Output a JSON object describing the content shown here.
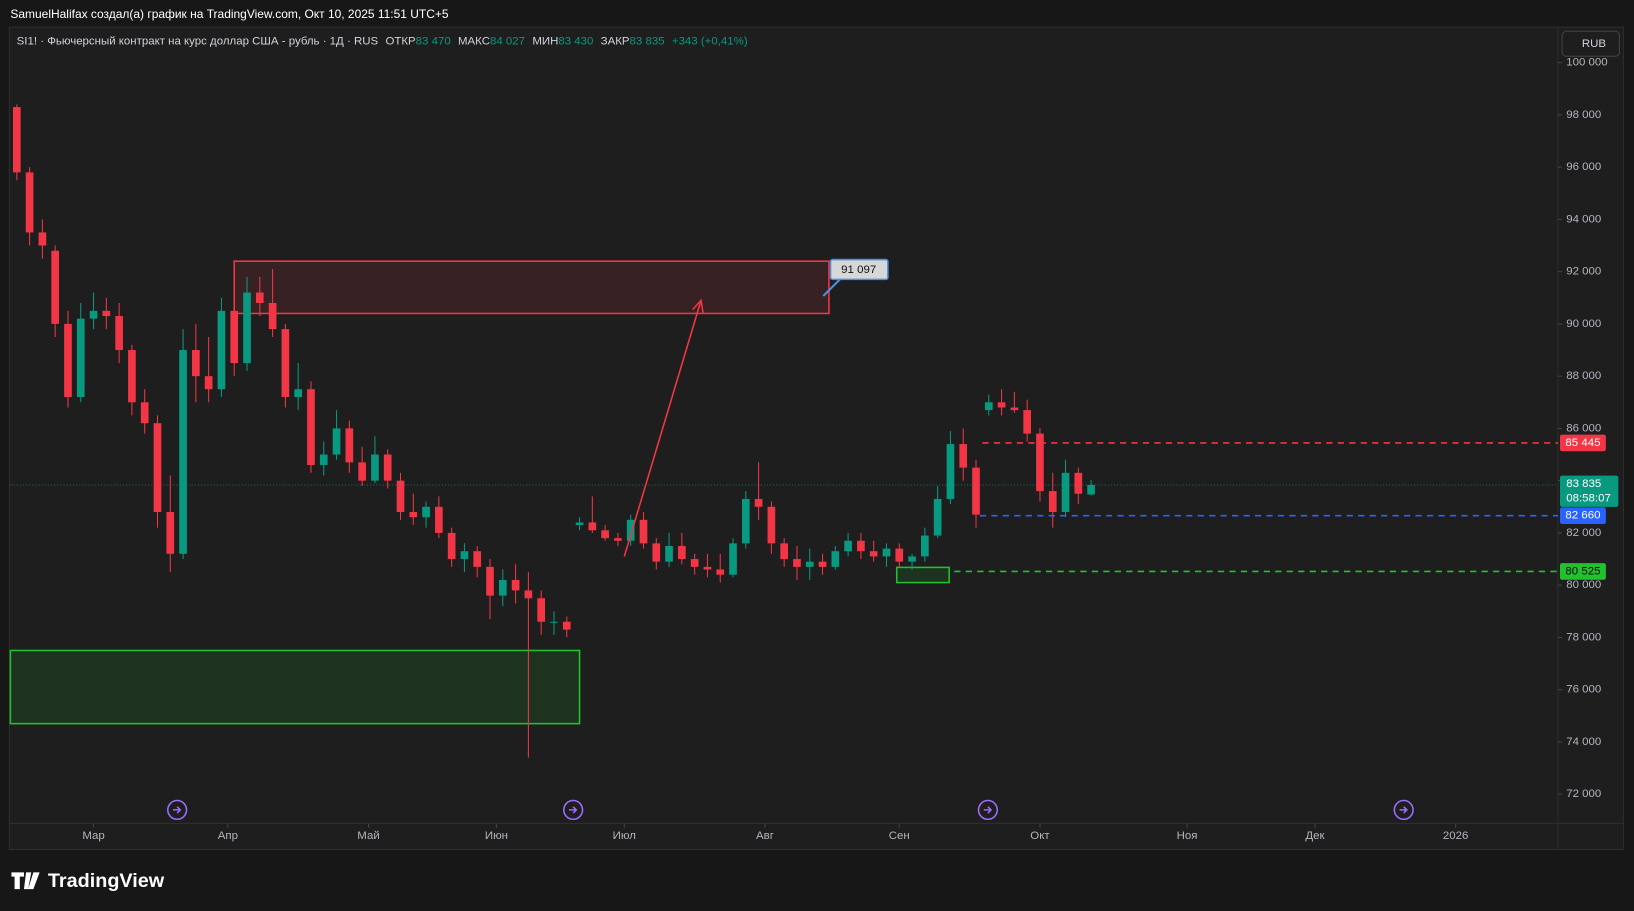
{
  "header": {
    "text": "SamuelHalifax создал(а) график на TradingView.com, Окт 10, 2025 11:51 UTC+5"
  },
  "legend": {
    "symbol": "SI1! · Фьючерсный контракт на курс доллар США - рубль · 1Д · RUS",
    "fields": [
      {
        "label": "ОТКР",
        "value": "83 470"
      },
      {
        "label": "МАКС",
        "value": "84 027"
      },
      {
        "label": "МИН",
        "value": "83 430"
      },
      {
        "label": "ЗАКР",
        "value": "83 835"
      }
    ],
    "change": "+343 (+0,41%)"
  },
  "currency": "RUB",
  "brand": "TradingView",
  "chart_data": {
    "type": "candlestick",
    "up_color": "#089981",
    "down_color": "#f23645",
    "values": [
      [
        98300,
        98400,
        95500,
        95800
      ],
      [
        95800,
        96000,
        93000,
        93500
      ],
      [
        93500,
        94000,
        92500,
        93000
      ],
      [
        92800,
        93000,
        89500,
        90000
      ],
      [
        90000,
        90500,
        86800,
        87200
      ],
      [
        87200,
        90800,
        87000,
        90200
      ],
      [
        90200,
        91200,
        89800,
        90500
      ],
      [
        90500,
        91000,
        89800,
        90300
      ],
      [
        90300,
        90800,
        88500,
        89000
      ],
      [
        89000,
        89200,
        86500,
        87000
      ],
      [
        87000,
        87500,
        85800,
        86200
      ],
      [
        86200,
        86500,
        82200,
        82800
      ],
      [
        82800,
        84200,
        80500,
        81200
      ],
      [
        81200,
        89800,
        81000,
        89000
      ],
      [
        89000,
        90000,
        87000,
        88000
      ],
      [
        88000,
        89500,
        87000,
        87500
      ],
      [
        87500,
        91000,
        87200,
        90500
      ],
      [
        90500,
        91000,
        88000,
        88500
      ],
      [
        88500,
        91800,
        88200,
        91200
      ],
      [
        91200,
        91800,
        90300,
        90800
      ],
      [
        90800,
        92100,
        89500,
        89800
      ],
      [
        89800,
        90000,
        86800,
        87200
      ],
      [
        87200,
        88500,
        86700,
        87500
      ],
      [
        87500,
        87800,
        84300,
        84600
      ],
      [
        84600,
        85500,
        84200,
        85000
      ],
      [
        85000,
        86700,
        84800,
        86000
      ],
      [
        86000,
        86300,
        84300,
        84700
      ],
      [
        84700,
        85300,
        83800,
        84000
      ],
      [
        84000,
        85700,
        83900,
        85000
      ],
      [
        85000,
        85200,
        83700,
        84000
      ],
      [
        84000,
        84300,
        82500,
        82800
      ],
      [
        82800,
        83500,
        82300,
        82600
      ],
      [
        82600,
        83200,
        82200,
        83000
      ],
      [
        83000,
        83400,
        81800,
        82000
      ],
      [
        82000,
        82200,
        80700,
        81000
      ],
      [
        81000,
        81600,
        80500,
        81300
      ],
      [
        81300,
        81500,
        80300,
        80700
      ],
      [
        80700,
        81000,
        78700,
        79600
      ],
      [
        79600,
        80600,
        79200,
        80200
      ],
      [
        80200,
        80800,
        79300,
        79800
      ],
      [
        79800,
        80500,
        73400,
        79500
      ],
      [
        79500,
        79800,
        78100,
        78600
      ],
      [
        78600,
        79000,
        78100,
        78600
      ],
      [
        78600,
        78800,
        78000,
        78300
      ],
      [
        82300,
        82600,
        82100,
        82400
      ],
      [
        82400,
        83400,
        82000,
        82100
      ],
      [
        82100,
        82300,
        81700,
        81800
      ],
      [
        81800,
        82000,
        81500,
        81700
      ],
      [
        81700,
        82700,
        81500,
        82500
      ],
      [
        82500,
        82800,
        81400,
        81600
      ],
      [
        81600,
        81800,
        80600,
        80900
      ],
      [
        80900,
        82000,
        80700,
        81500
      ],
      [
        81500,
        82000,
        80800,
        81000
      ],
      [
        81000,
        81200,
        80400,
        80700
      ],
      [
        80700,
        81200,
        80300,
        80600
      ],
      [
        80600,
        81200,
        80100,
        80400
      ],
      [
        80400,
        81800,
        80300,
        81600
      ],
      [
        81600,
        83600,
        81400,
        83300
      ],
      [
        83300,
        84700,
        82500,
        83000
      ],
      [
        83000,
        83200,
        81200,
        81600
      ],
      [
        81600,
        81800,
        80700,
        81000
      ],
      [
        81000,
        81500,
        80200,
        80700
      ],
      [
        80700,
        81400,
        80200,
        80900
      ],
      [
        80900,
        81200,
        80400,
        80700
      ],
      [
        80700,
        81500,
        80600,
        81300
      ],
      [
        81300,
        82000,
        81100,
        81700
      ],
      [
        81700,
        82000,
        81000,
        81300
      ],
      [
        81300,
        81700,
        80900,
        81100
      ],
      [
        81100,
        81600,
        80700,
        81400
      ],
      [
        81400,
        81600,
        80700,
        80900
      ],
      [
        80900,
        81200,
        80600,
        81100
      ],
      [
        81100,
        82200,
        80900,
        81900
      ],
      [
        81900,
        83800,
        81800,
        83300
      ],
      [
        83300,
        85900,
        83100,
        85400
      ],
      [
        85400,
        86000,
        84000,
        84500
      ],
      [
        84500,
        84800,
        82200,
        82700
      ],
      [
        86700,
        87300,
        86500,
        87000
      ],
      [
        87000,
        87500,
        86500,
        86800
      ],
      [
        86800,
        87400,
        86600,
        86700
      ],
      [
        86700,
        87100,
        85500,
        85800
      ],
      [
        85800,
        86000,
        83200,
        83600
      ],
      [
        83600,
        84300,
        82200,
        82800
      ],
      [
        82800,
        84800,
        82600,
        84300
      ],
      [
        84300,
        84500,
        83100,
        83500
      ],
      [
        83470,
        84027,
        83430,
        83835
      ]
    ],
    "xlim": [
      -0.5,
      120.5
    ],
    "xticks": [
      {
        "value": 6,
        "label": "Мар"
      },
      {
        "value": 16.5,
        "label": "Апр"
      },
      {
        "value": 27.5,
        "label": "Май"
      },
      {
        "value": 37.5,
        "label": "Июн"
      },
      {
        "value": 47.5,
        "label": "Июл"
      },
      {
        "value": 58.5,
        "label": "Авг"
      },
      {
        "value": 69,
        "label": "Сен"
      },
      {
        "value": 80,
        "label": "Окт"
      },
      {
        "value": 91.5,
        "label": "Ноя"
      },
      {
        "value": 101.5,
        "label": "Дек"
      },
      {
        "value": 112.5,
        "label": "2026"
      }
    ],
    "ylim": [
      70880,
      101360
    ],
    "yticks": [
      {
        "value": 72000,
        "label": "72 000"
      },
      {
        "value": 74000,
        "label": "74 000"
      },
      {
        "value": 76000,
        "label": "76 000"
      },
      {
        "value": 78000,
        "label": "78 000"
      },
      {
        "value": 80000,
        "label": "80 000"
      },
      {
        "value": 82000,
        "label": "82 000"
      },
      {
        "value": 84000,
        "label": "84 000"
      },
      {
        "value": 86000,
        "label": "86 000"
      },
      {
        "value": 88000,
        "label": "88 000"
      },
      {
        "value": 90000,
        "label": "90 000"
      },
      {
        "value": 92000,
        "label": "92 000"
      },
      {
        "value": 94000,
        "label": "94 000"
      },
      {
        "value": 96000,
        "label": "96 000"
      },
      {
        "value": 98000,
        "label": "98 000"
      },
      {
        "value": 100000,
        "label": "100 000"
      }
    ],
    "levels": [
      {
        "value": 85445,
        "label": "85 445",
        "color": "#f23645",
        "start": 75.5
      },
      {
        "value": 82660,
        "label": "82 660",
        "color": "#2962ff",
        "start": 75.3
      },
      {
        "value": 80525,
        "label": "80 525",
        "color": "#22c22e",
        "start": 73.3
      }
    ],
    "current_price": {
      "value": 83835,
      "label": "83 835",
      "countdown": "08:58:07",
      "color": "#089981"
    },
    "callout": {
      "value": 91097,
      "label": "91 097"
    },
    "zones": [
      {
        "x": [
          17,
          63.5
        ],
        "y": [
          90400,
          92400
        ],
        "color": "#f23645"
      },
      {
        "x": [
          -0.5,
          44
        ],
        "y": [
          74700,
          77500
        ],
        "color": "#22c22e"
      },
      {
        "x": [
          68.8,
          72.9
        ],
        "y": [
          80100,
          80680
        ],
        "color": "#22c22e"
      }
    ],
    "arrow": {
      "from": [
        47.5,
        81100
      ],
      "to": [
        53.5,
        90900
      ],
      "color": "#f23645"
    }
  }
}
